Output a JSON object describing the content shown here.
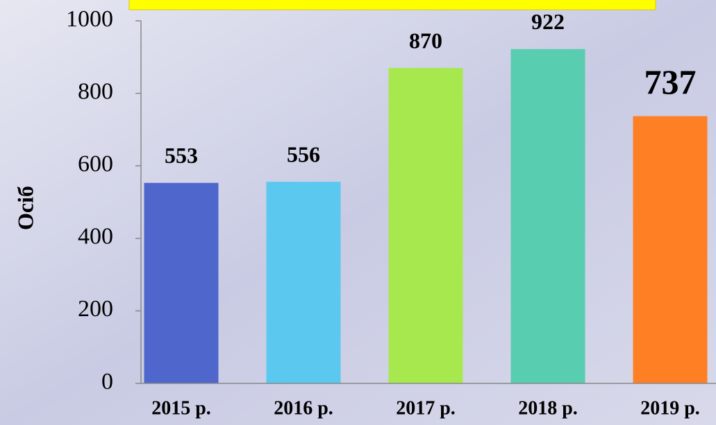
{
  "chart_data": {
    "type": "bar",
    "y_label": "Осіб",
    "categories": [
      "2015 р.",
      "2016 р.",
      "2017 р.",
      "2018 р.",
      "2019 р."
    ],
    "values": [
      553,
      556,
      870,
      922,
      737
    ],
    "colors": [
      "#4f67cc",
      "#5bc8f0",
      "#a8e84f",
      "#58cdb0",
      "#ff7f24"
    ],
    "ylim": [
      0,
      1000
    ],
    "yticks": [
      0,
      200,
      400,
      600,
      800,
      1000
    ]
  }
}
